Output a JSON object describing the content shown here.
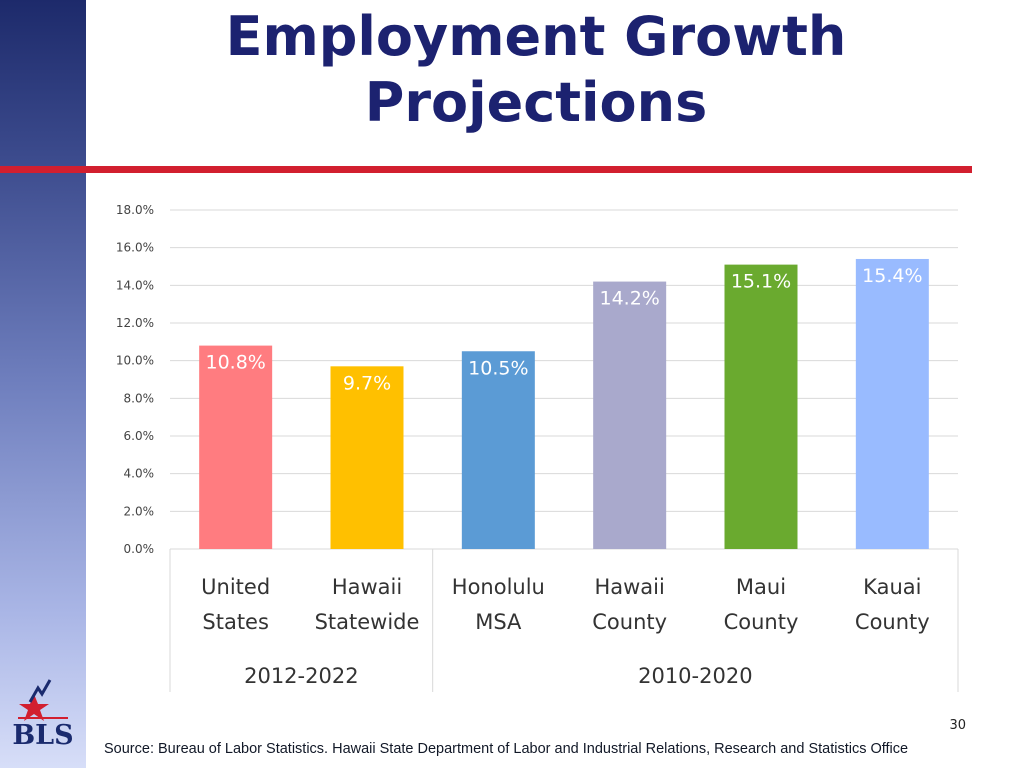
{
  "slide": {
    "title_line1": "Employment Growth",
    "title_line2": "Projections",
    "page_number": "30",
    "source": "Source: Bureau of Labor Statistics. Hawaii State Department of Labor and Industrial Relations, Research and Statistics Office",
    "logo_text": "BLS"
  },
  "colors": {
    "title": "#1c2270",
    "rule": "#d21f2f"
  },
  "chart_data": {
    "type": "bar",
    "title": "",
    "xlabel": "",
    "ylabel": "",
    "ylim": [
      0,
      18
    ],
    "yticks": [
      "0.0%",
      "2.0%",
      "4.0%",
      "6.0%",
      "8.0%",
      "10.0%",
      "12.0%",
      "14.0%",
      "16.0%",
      "18.0%"
    ],
    "grid": true,
    "categories": [
      {
        "line1": "United",
        "line2": "States"
      },
      {
        "line1": "Hawaii",
        "line2": "Statewide"
      },
      {
        "line1": "Honolulu",
        "line2": "MSA"
      },
      {
        "line1": "Hawaii",
        "line2": "County"
      },
      {
        "line1": "Maui",
        "line2": "County"
      },
      {
        "line1": "Kauai",
        "line2": "County"
      }
    ],
    "values": [
      10.8,
      9.7,
      10.5,
      14.2,
      15.1,
      15.4
    ],
    "labels": [
      "10.8%",
      "9.7%",
      "10.5%",
      "14.2%",
      "15.1%",
      "15.4%"
    ],
    "bar_colors": [
      "#ff7c80",
      "#ffc000",
      "#5b9bd5",
      "#a9a9cc",
      "#6aaa2f",
      "#99bbff"
    ],
    "groups": [
      {
        "label": "2012-2022",
        "span": 2
      },
      {
        "label": "2010-2020",
        "span": 4
      }
    ]
  }
}
